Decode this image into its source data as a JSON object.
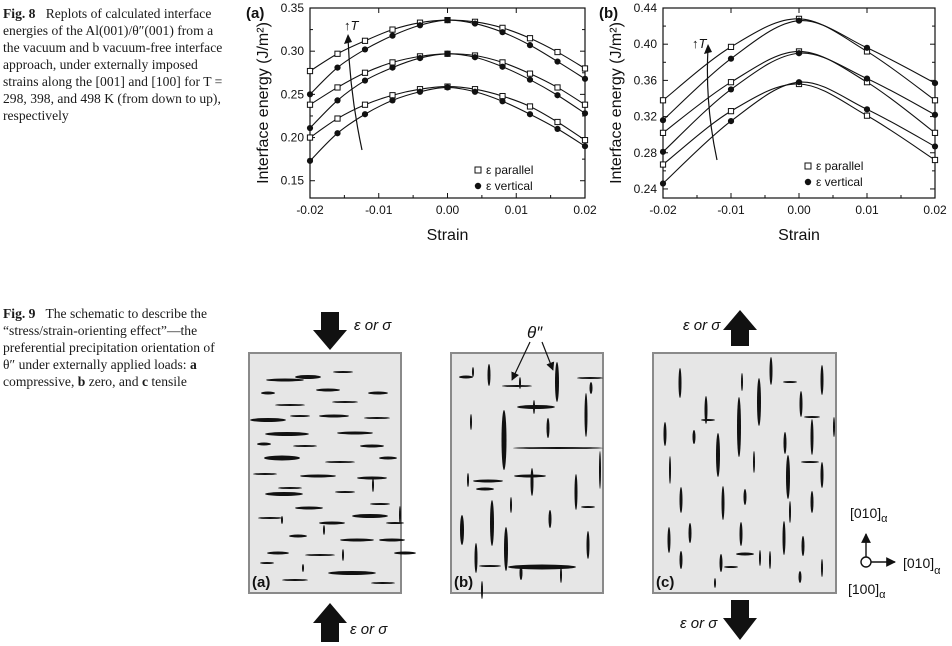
{
  "fig8": {
    "caption_label": "Fig. 8",
    "caption_text": "Replots of calculated interface energies of the Al(001)/θ″(001) from a the vacuum and b vacuum-free interface approach, under externally imposed strains along the [001] and [100] for T = 298, 398, and 498 K (from down to up), respectively",
    "panels": [
      {
        "label": "(a)",
        "xlabel": "Strain",
        "ylabel": "Interface energy (J/m²)",
        "xticks": [
          "-0.02",
          "-0.01",
          "0.00",
          "0.01",
          "0.02"
        ],
        "yticks": [
          "0.15",
          "0.20",
          "0.25",
          "0.30",
          "0.35"
        ],
        "arrow_label": "T",
        "legend": [
          "ε parallel",
          "ε vertical"
        ]
      },
      {
        "label": "(b)",
        "xlabel": "Strain",
        "ylabel": "Interface energy (J/m²)",
        "xticks": [
          "-0.02",
          "-0.01",
          "0.00",
          "0.01",
          "0.02"
        ],
        "yticks": [
          "0.24",
          "0.28",
          "0.32",
          "0.36",
          "0.40",
          "0.44"
        ],
        "arrow_label": "T",
        "legend": [
          "ε parallel",
          "ε vertical"
        ]
      }
    ]
  },
  "chart_data": [
    {
      "type": "scatter",
      "xlim": [
        -0.02,
        0.02
      ],
      "ylim": [
        0.13,
        0.35
      ],
      "xlabel": "Strain",
      "ylabel": "Interface energy (J/m²)",
      "legend_position": "bottom-right",
      "series": [
        {
          "name": "ε parallel",
          "marker": "open-square",
          "x": [
            -0.02,
            -0.016,
            -0.012,
            -0.008,
            -0.004,
            0,
            0.004,
            0.008,
            0.012,
            0.016,
            0.02
          ],
          "y": [
            0.277,
            0.297,
            0.312,
            0.325,
            0.333,
            0.336,
            0.334,
            0.327,
            0.315,
            0.299,
            0.28
          ]
        },
        {
          "name": "ε parallel",
          "marker": "open-square",
          "x": [
            -0.02,
            -0.016,
            -0.012,
            -0.008,
            -0.004,
            0,
            0.004,
            0.008,
            0.012,
            0.016,
            0.02
          ],
          "y": [
            0.238,
            0.258,
            0.275,
            0.287,
            0.294,
            0.297,
            0.295,
            0.287,
            0.274,
            0.258,
            0.238
          ]
        },
        {
          "name": "ε parallel",
          "marker": "open-square",
          "x": [
            -0.02,
            -0.016,
            -0.012,
            -0.008,
            -0.004,
            0,
            0.004,
            0.008,
            0.012,
            0.016,
            0.02
          ],
          "y": [
            0.2,
            0.222,
            0.238,
            0.249,
            0.256,
            0.259,
            0.256,
            0.248,
            0.236,
            0.218,
            0.197
          ]
        },
        {
          "name": "ε vertical",
          "marker": "filled-circle",
          "x": [
            -0.02,
            -0.016,
            -0.012,
            -0.008,
            -0.004,
            0,
            0.004,
            0.008,
            0.012,
            0.016,
            0.02
          ],
          "y": [
            0.25,
            0.281,
            0.302,
            0.318,
            0.33,
            0.336,
            0.332,
            0.322,
            0.307,
            0.288,
            0.268
          ]
        },
        {
          "name": "ε vertical",
          "marker": "filled-circle",
          "x": [
            -0.02,
            -0.016,
            -0.012,
            -0.008,
            -0.004,
            0,
            0.004,
            0.008,
            0.012,
            0.016,
            0.02
          ],
          "y": [
            0.211,
            0.243,
            0.266,
            0.281,
            0.292,
            0.297,
            0.293,
            0.282,
            0.267,
            0.249,
            0.228
          ]
        },
        {
          "name": "ε vertical",
          "marker": "filled-circle",
          "x": [
            -0.02,
            -0.016,
            -0.012,
            -0.008,
            -0.004,
            0,
            0.004,
            0.008,
            0.012,
            0.016,
            0.02
          ],
          "y": [
            0.173,
            0.205,
            0.227,
            0.243,
            0.253,
            0.258,
            0.253,
            0.242,
            0.227,
            0.21,
            0.19
          ]
        }
      ]
    },
    {
      "type": "scatter",
      "xlim": [
        -0.02,
        0.02
      ],
      "ylim": [
        0.23,
        0.44
      ],
      "xlabel": "Strain",
      "ylabel": "Interface energy (J/m²)",
      "legend_position": "bottom-right",
      "series": [
        {
          "name": "ε parallel",
          "marker": "open-square",
          "x": [
            -0.02,
            -0.01,
            0,
            0.01,
            0.02
          ],
          "y": [
            0.338,
            0.397,
            0.428,
            0.392,
            0.338
          ]
        },
        {
          "name": "ε parallel",
          "marker": "open-square",
          "x": [
            -0.02,
            -0.01,
            0,
            0.01,
            0.02
          ],
          "y": [
            0.302,
            0.358,
            0.392,
            0.358,
            0.302
          ]
        },
        {
          "name": "ε parallel",
          "marker": "open-square",
          "x": [
            -0.02,
            -0.01,
            0,
            0.01,
            0.02
          ],
          "y": [
            0.267,
            0.326,
            0.356,
            0.321,
            0.272
          ]
        },
        {
          "name": "ε vertical",
          "marker": "filled-circle",
          "x": [
            -0.02,
            -0.01,
            0,
            0.01,
            0.02
          ],
          "y": [
            0.316,
            0.384,
            0.426,
            0.396,
            0.357
          ]
        },
        {
          "name": "ε vertical",
          "marker": "filled-circle",
          "x": [
            -0.02,
            -0.01,
            0,
            0.01,
            0.02
          ],
          "y": [
            0.281,
            0.35,
            0.39,
            0.362,
            0.322
          ]
        },
        {
          "name": "ε vertical",
          "marker": "filled-circle",
          "x": [
            -0.02,
            -0.01,
            0,
            0.01,
            0.02
          ],
          "y": [
            0.246,
            0.315,
            0.358,
            0.328,
            0.287
          ]
        }
      ]
    }
  ],
  "fig9": {
    "caption_label": "Fig. 9",
    "caption_text_1": "The schematic to describe the “stress/strain-orienting effect”—the preferential precipitation orientation of θ″ under externally applied loads: ",
    "caption_a": "a",
    "caption_a_text": " compressive, ",
    "caption_b": "b",
    "caption_b_text": " zero, and ",
    "caption_c": "c",
    "caption_c_text": " tensile",
    "load_label": "ε or σ",
    "theta_label": "θ″",
    "panels": [
      "(a)",
      "(b)",
      "(c)"
    ],
    "axes": {
      "up": "[010]",
      "right": "[010]",
      "origin": "[100]",
      "sub": "α"
    }
  }
}
